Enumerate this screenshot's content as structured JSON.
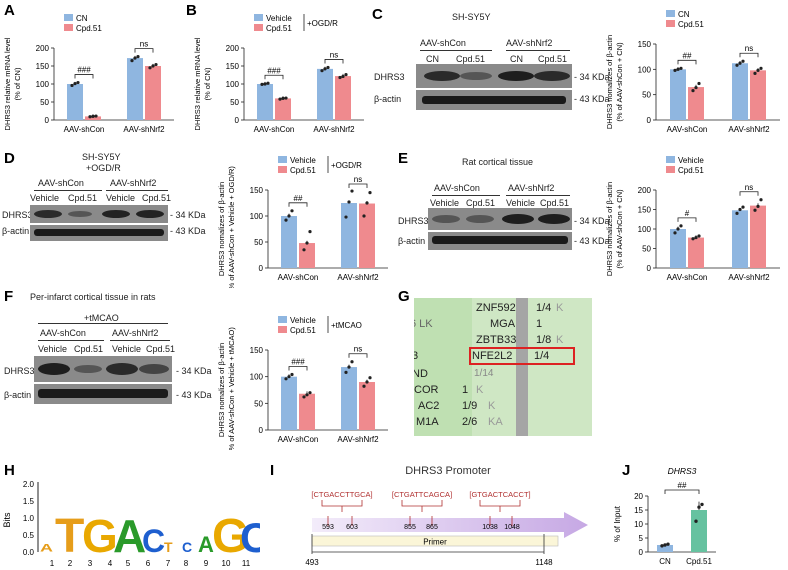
{
  "colors": {
    "ctrl": "#8fb6e0",
    "trt": "#ef8a8e",
    "text": "#222222",
    "blot_bg": "#7a7a7a",
    "band": "#1a1a1a"
  },
  "panels": {
    "A": {
      "letter": "A",
      "ylabel1": "DHRS3 relative mRNA level",
      "ylabel2": "(% of CN)",
      "legend": [
        "CN",
        "Cpd.51"
      ],
      "groups": [
        "AAV-shCon",
        "AAV-shNrf2"
      ],
      "sig": [
        "###",
        "ns"
      ],
      "yticks": [
        "0",
        "50",
        "100",
        "150",
        "200"
      ]
    },
    "B": {
      "letter": "B",
      "ylabel1": "DHRS3 relative mRNA level",
      "ylabel2": "(% of CN)",
      "legend": [
        "Vehicle",
        "Cpd.51"
      ],
      "legend_extra": "+OGD/R",
      "groups": [
        "AAV-shCon",
        "AAV-shNrf2"
      ],
      "sig": [
        "###",
        "ns"
      ],
      "yticks": [
        "0",
        "50",
        "100",
        "150",
        "200"
      ]
    },
    "C": {
      "letter": "C",
      "cell": "SH-SY5Y",
      "conditions": [
        "AAV-shCon",
        "AAV-shNrf2"
      ],
      "lanes": [
        "CN",
        "Cpd.51",
        "CN",
        "Cpd.51"
      ],
      "rows": [
        "DHRS3",
        "β-actin"
      ],
      "sizes": [
        "- 34 KDa",
        "- 43 KDa"
      ],
      "ylabel1": "DHRS3 nomalizes of β-actin",
      "ylabel2": "(% of AAV-shCon + CN)",
      "legend": [
        "CN",
        "Cpd.51"
      ],
      "groups": [
        "AAV-shCon",
        "AAV-shNrf2"
      ],
      "sig": [
        "##",
        "ns"
      ],
      "yticks": [
        "0",
        "50",
        "100",
        "150"
      ]
    },
    "D": {
      "letter": "D",
      "cell": "SH-SY5Y",
      "cond_extra": "+OGD/R",
      "conditions": [
        "AAV-shCon",
        "AAV-shNrf2"
      ],
      "lanes": [
        "Vehicle",
        "Cpd.51",
        "Vehicle",
        "Cpd.51"
      ],
      "rows": [
        "DHRS3",
        "β-actin"
      ],
      "sizes": [
        "- 34 KDa",
        "- 43 KDa"
      ],
      "ylabel1": "DHRS3 nomalizes of β-actin",
      "ylabel2": "(% of AAV-shCon + Vehicle + OGD/R)",
      "legend": [
        "Vehicle",
        "Cpd.51"
      ],
      "legend_extra": "+OGD/R",
      "groups": [
        "AAV-shCon",
        "AAV-shNrf2"
      ],
      "sig": [
        "##",
        "ns"
      ],
      "yticks": [
        "0",
        "50",
        "100",
        "150"
      ]
    },
    "E": {
      "letter": "E",
      "cell": "Rat cortical tissue",
      "conditions": [
        "AAV-shCon",
        "AAV-shNrf2"
      ],
      "lanes": [
        "Vehicle",
        "Cpd.51",
        "Vehicle",
        "Cpd.51"
      ],
      "rows": [
        "DHRS3",
        "β-actin"
      ],
      "sizes": [
        "- 34 KDa",
        "- 43 KDa"
      ],
      "ylabel1": "DHRS3 nomalizes of β-actin",
      "ylabel2": "(% of AAV-shCon + CN)",
      "legend": [
        "Vehicle",
        "Cpd.51"
      ],
      "groups": [
        "AAV-shCon",
        "AAV-shNrf2"
      ],
      "sig": [
        "#",
        "ns"
      ],
      "yticks": [
        "0",
        "50",
        "100",
        "150",
        "200"
      ]
    },
    "F": {
      "letter": "F",
      "cell": "Per-infarct cortical tissue in rats",
      "cond_extra": "+tMCAO",
      "conditions": [
        "AAV-shCon",
        "AAV-shNrf2"
      ],
      "lanes": [
        "Vehicle",
        "Cpd.51",
        "Vehicle",
        "Cpd.51"
      ],
      "rows": [
        "DHRS3",
        "β-actin"
      ],
      "sizes": [
        "- 34 KDa",
        "- 43 KDa"
      ],
      "ylabel1": "DHRS3 nomalizes of β-actin",
      "ylabel2": "(% of AAV-shCon + Vehicle + tMCAO)",
      "legend": [
        "Vehicle",
        "Cpd.51"
      ],
      "legend_extra": "+tMCAO",
      "groups": [
        "AAV-shCon",
        "AAV-shNrf2"
      ],
      "sig": [
        "###",
        "ns"
      ],
      "yticks": [
        "0",
        "50",
        "100",
        "150"
      ]
    },
    "G": {
      "letter": "G",
      "rows": [
        [
          "ZNF592",
          "1/4",
          "K"
        ],
        [
          "MGA",
          "1",
          ""
        ],
        [
          "ZBTB33",
          "1/8",
          "K"
        ],
        [
          "NFE2L2",
          "1/4",
          ""
        ],
        [
          "",
          "1/14",
          ""
        ],
        [
          "",
          "1",
          "K"
        ],
        [
          "",
          "1/9",
          "K"
        ],
        [
          "",
          "2/6",
          "KA"
        ]
      ],
      "left_frags": [
        "6 LK",
        "3",
        "ND",
        "COR",
        "AC2",
        "M1A"
      ]
    },
    "H": {
      "letter": "H",
      "ylabel": "Bits",
      "yticks": [
        "0.0",
        "0.5",
        "1.0",
        "1.5",
        "2.0"
      ],
      "positions": [
        "1",
        "2",
        "3",
        "4",
        "5",
        "6",
        "7",
        "8",
        "9",
        "10",
        "11"
      ]
    },
    "I": {
      "letter": "I",
      "title": "DHRS3 Promoter",
      "sites": [
        "CTGACCTTGCA",
        "CTGATTCAGCA",
        "GTGACTCACCT"
      ],
      "site_coords": [
        [
          "593",
          "603"
        ],
        [
          "855",
          "865"
        ],
        [
          "1038",
          "1048"
        ]
      ],
      "primer": "Primer",
      "start": "493",
      "end": "1148"
    },
    "J": {
      "letter": "J",
      "title": "DHRS3",
      "ylabel": "% of Input",
      "categories": [
        "CN",
        "Cpd.51"
      ],
      "sig": "##",
      "yticks": [
        "0",
        "5",
        "10",
        "15",
        "20"
      ]
    }
  },
  "chart_data": [
    {
      "id": "A",
      "type": "bar",
      "title": "",
      "ylabel": "DHRS3 relative mRNA level (% of CN)",
      "categories": [
        "AAV-shCon",
        "AAV-shNrf2"
      ],
      "ylim": [
        0,
        200
      ],
      "series": [
        {
          "name": "CN",
          "values": [
            100,
            172
          ],
          "points": [
            [
              96,
              101,
              104
            ],
            [
              165,
              172,
              176
            ]
          ]
        },
        {
          "name": "Cpd.51",
          "values": [
            10,
            150
          ],
          "points": [
            [
              9,
              10,
              11
            ],
            [
              145,
              150,
              154
            ]
          ]
        }
      ]
    },
    {
      "id": "B",
      "type": "bar",
      "title": "",
      "ylabel": "DHRS3 relative mRNA level (% of CN)",
      "categories": [
        "AAV-shCon",
        "AAV-shNrf2"
      ],
      "ylim": [
        0,
        200
      ],
      "series": [
        {
          "name": "Vehicle",
          "values": [
            100,
            142
          ],
          "points": [
            [
              99,
              100,
              102
            ],
            [
              137,
              142,
              146
            ]
          ]
        },
        {
          "name": "Cpd.51",
          "values": [
            60,
            122
          ],
          "points": [
            [
              58,
              60,
              61
            ],
            [
              118,
              121,
              126
            ]
          ]
        }
      ]
    },
    {
      "id": "C",
      "type": "bar",
      "title": "",
      "ylabel": "DHRS3 nomalizes of β-actin (% of AAV-shCon + CN)",
      "categories": [
        "AAV-shCon",
        "AAV-shNrf2"
      ],
      "ylim": [
        0,
        150
      ],
      "series": [
        {
          "name": "CN",
          "values": [
            100,
            112
          ],
          "points": [
            [
              98,
              100,
              102
            ],
            [
              108,
              112,
              116
            ]
          ]
        },
        {
          "name": "Cpd.51",
          "values": [
            65,
            98
          ],
          "points": [
            [
              58,
              64,
              72
            ],
            [
              92,
              98,
              102
            ]
          ]
        }
      ]
    },
    {
      "id": "D",
      "type": "bar",
      "title": "",
      "ylabel": "DHRS3 nomalizes of β-actin (% of AAV-shCon + Vehicle + OGD/R)",
      "categories": [
        "AAV-shCon",
        "AAV-shNrf2"
      ],
      "ylim": [
        0,
        150
      ],
      "series": [
        {
          "name": "Vehicle",
          "values": [
            100,
            125
          ],
          "points": [
            [
              92,
              100,
              110
            ],
            [
              98,
              127,
              148
            ]
          ]
        },
        {
          "name": "Cpd.51",
          "values": [
            48,
            124
          ],
          "points": [
            [
              35,
              48,
              70
            ],
            [
              100,
              125,
              145
            ]
          ]
        }
      ]
    },
    {
      "id": "E",
      "type": "bar",
      "title": "",
      "ylabel": "DHRS3 nomalizes of β-actin (% of AAV-shCon + CN)",
      "categories": [
        "AAV-shCon",
        "AAV-shNrf2"
      ],
      "ylim": [
        0,
        200
      ],
      "series": [
        {
          "name": "Vehicle",
          "values": [
            100,
            148
          ],
          "points": [
            [
              90,
              100,
              108
            ],
            [
              140,
              150,
              156
            ]
          ]
        },
        {
          "name": "Cpd.51",
          "values": [
            78,
            160
          ],
          "points": [
            [
              75,
              78,
              82
            ],
            [
              148,
              158,
              175
            ]
          ]
        }
      ]
    },
    {
      "id": "F",
      "type": "bar",
      "title": "",
      "ylabel": "DHRS3 nomalizes of β-actin (% of AAV-shCon + Vehicle + tMCAO)",
      "categories": [
        "AAV-shCon",
        "AAV-shNrf2"
      ],
      "ylim": [
        0,
        150
      ],
      "series": [
        {
          "name": "Vehicle",
          "values": [
            100,
            118
          ],
          "points": [
            [
              96,
              100,
              104
            ],
            [
              108,
              118,
              128
            ]
          ]
        },
        {
          "name": "Cpd.51",
          "values": [
            68,
            90
          ],
          "points": [
            [
              62,
              66,
              70
            ],
            [
              82,
              90,
              98
            ]
          ]
        }
      ]
    },
    {
      "id": "J",
      "type": "bar",
      "title": "DHRS3",
      "ylabel": "% of Input",
      "categories": [
        "CN",
        "Cpd.51"
      ],
      "ylim": [
        0,
        20
      ],
      "series": [
        {
          "name": "% of Input",
          "values": [
            2.5,
            15
          ],
          "points": [
            [
              2.2,
              2.5,
              2.8
            ],
            [
              11,
              16,
              17
            ]
          ]
        }
      ]
    }
  ]
}
